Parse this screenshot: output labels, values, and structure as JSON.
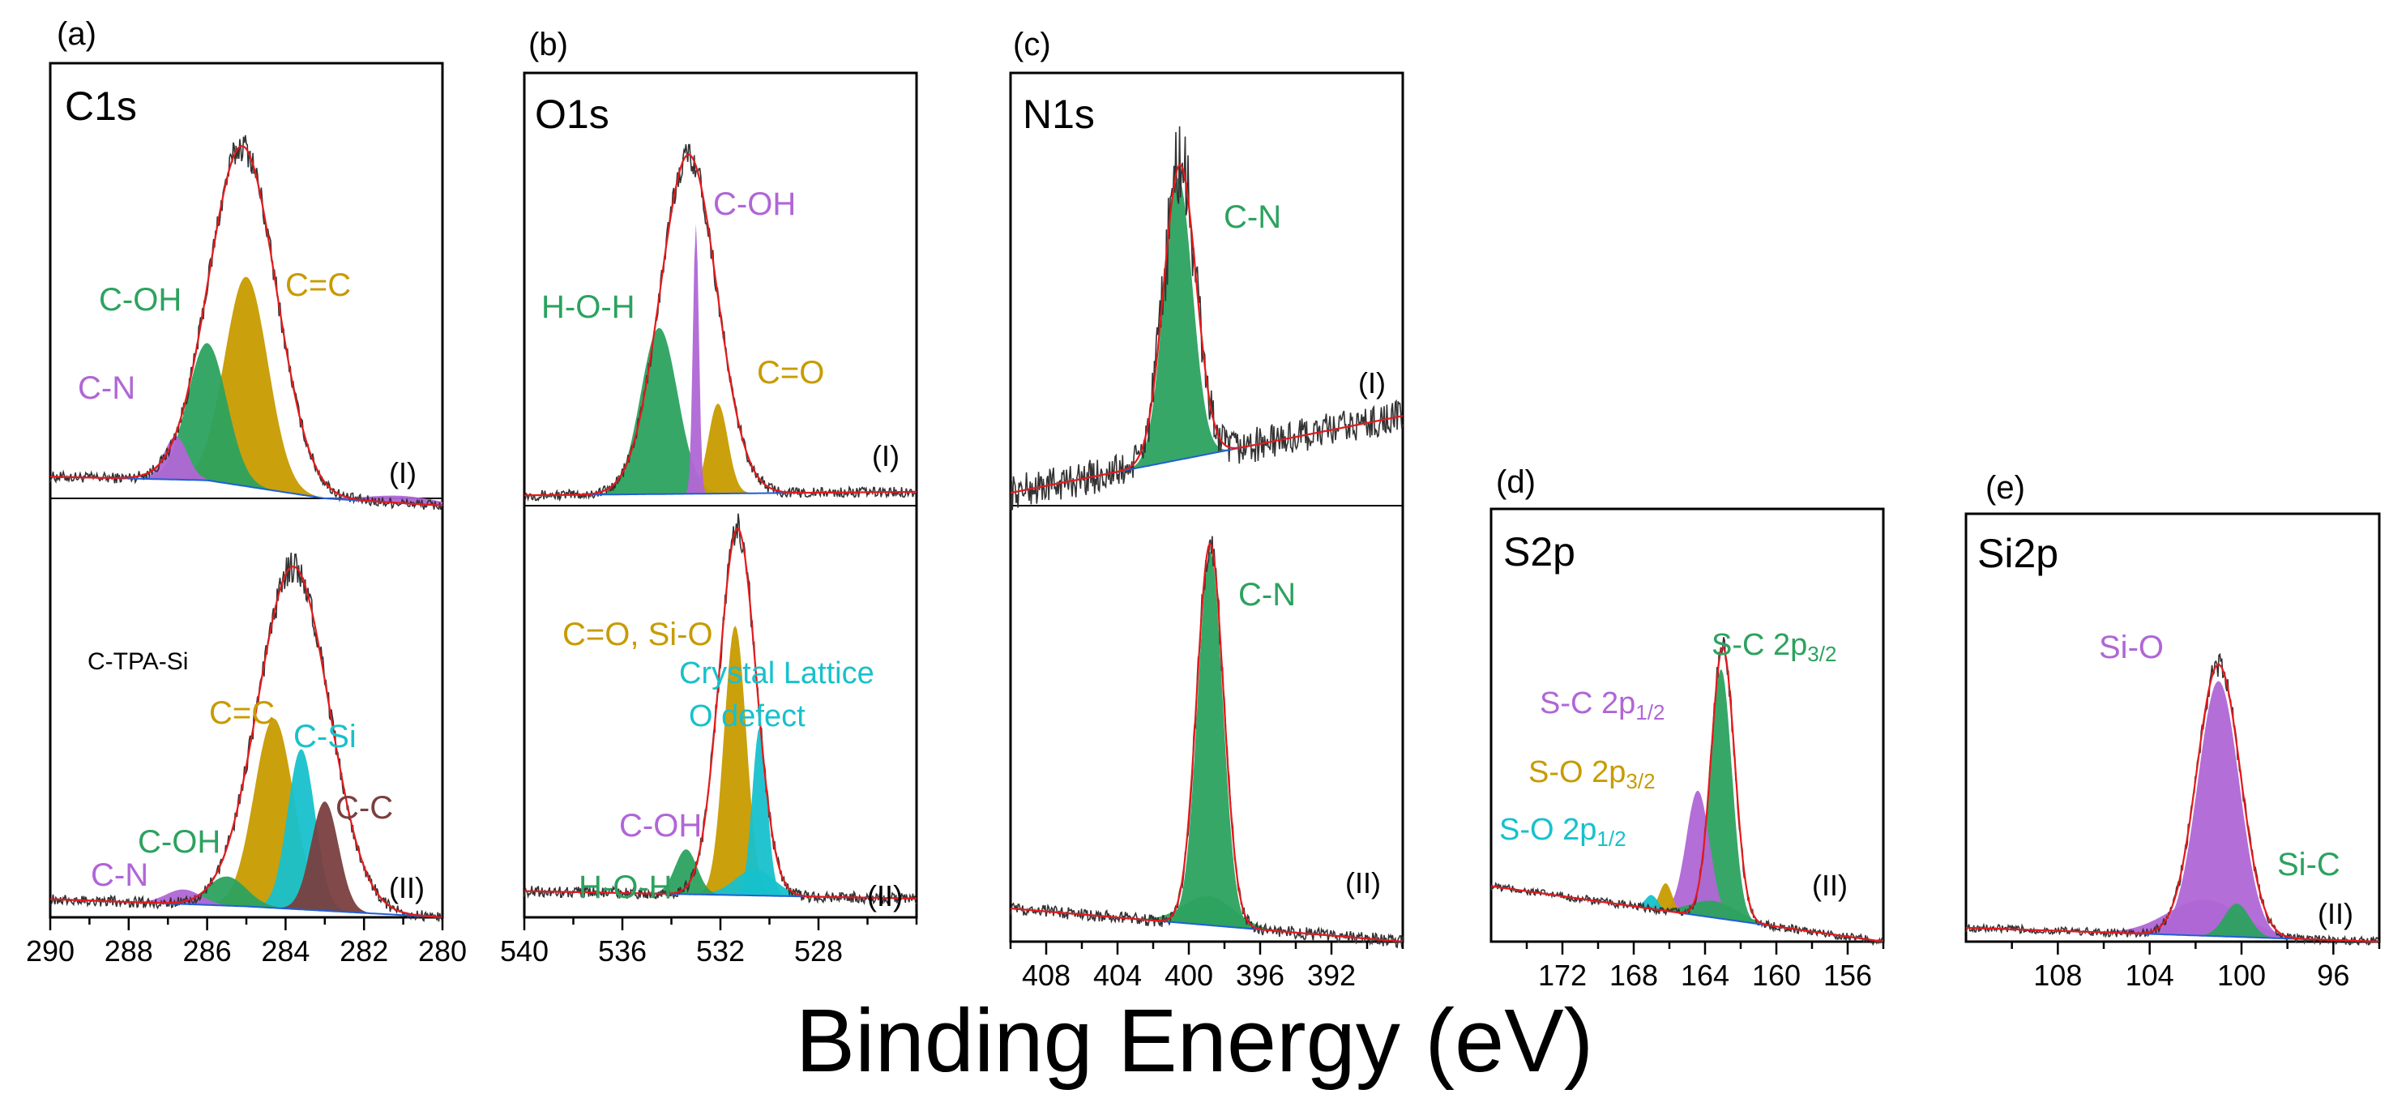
{
  "figure": {
    "xlabel": "Binding Energy (eV)"
  },
  "colors": {
    "black": "#333333",
    "red": "#e41a1c",
    "blue": "#1f5fd6",
    "green": "#2ca25f",
    "gold": "#c89b00",
    "violet": "#b066d6",
    "cyan": "#17c1cc",
    "brown": "#7a3f3f",
    "yellow": "#e6c300"
  },
  "chart_data": [
    {
      "panel": "(a)",
      "title": "C1s",
      "type": "line",
      "xlim": [
        290,
        280
      ],
      "xticks": [
        290,
        288,
        286,
        284,
        282,
        280
      ],
      "subplots": [
        {
          "label": "(I)",
          "ylim": [
            0,
            1.2
          ],
          "baseline": [
            [
              290,
              0.06
            ],
            [
              286,
              0.05
            ],
            [
              283,
              0.0
            ],
            [
              280,
              -0.02
            ]
          ],
          "envelope": {
            "center": 285.1,
            "sigma": 0.85,
            "height": 0.94
          },
          "peaks": [
            {
              "name": "C=C",
              "label": "C=C",
              "center": 285.0,
              "sigma": 0.55,
              "height": 0.58,
              "color": "gold"
            },
            {
              "name": "C-OH",
              "label": "C-OH",
              "center": 286.0,
              "sigma": 0.5,
              "height": 0.38,
              "color": "green"
            },
            {
              "name": "C-N",
              "label": "C-N",
              "center": 286.8,
              "sigma": 0.3,
              "height": 0.12,
              "color": "violet"
            },
            {
              "name": "tail",
              "center": 281.0,
              "sigma": 0.9,
              "height": 0.02,
              "color": "violet"
            }
          ]
        },
        {
          "label": "(II)",
          "ylim": [
            0,
            1.15
          ],
          "note": "C-TPA-Si",
          "baseline": [
            [
              290,
              0.05
            ],
            [
              285,
              0.03
            ],
            [
              280,
              0.0
            ]
          ],
          "envelope": {
            "center": 283.8,
            "sigma": 0.9,
            "height": 0.94
          },
          "peaks": [
            {
              "name": "C=C",
              "label": "C=C",
              "center": 284.3,
              "sigma": 0.5,
              "height": 0.52,
              "color": "gold"
            },
            {
              "name": "C-Si",
              "label": "C-Si",
              "center": 283.6,
              "sigma": 0.35,
              "height": 0.44,
              "color": "cyan"
            },
            {
              "name": "C-C",
              "label": "C-C",
              "center": 283.0,
              "sigma": 0.35,
              "height": 0.3,
              "color": "brown"
            },
            {
              "name": "C-OH",
              "label": "C-OH",
              "center": 285.5,
              "sigma": 0.5,
              "height": 0.08,
              "color": "green"
            },
            {
              "name": "C-N",
              "label": "C-N",
              "center": 286.6,
              "sigma": 0.45,
              "height": 0.04,
              "color": "violet"
            }
          ]
        }
      ]
    },
    {
      "panel": "(b)",
      "title": "O1s",
      "type": "line",
      "xlim": [
        540,
        524
      ],
      "xticks": [
        540,
        536,
        532,
        528
      ],
      "subplots": [
        {
          "label": "(I)",
          "ylim": [
            0,
            1.25
          ],
          "baseline": [
            [
              540,
              0.03
            ],
            [
              524,
              0.04
            ]
          ],
          "envelope": {
            "center": 533.3,
            "sigma": 1.15,
            "height": 0.98
          },
          "peaks": [
            {
              "name": "H-O-H",
              "label": "H-O-H",
              "center": 534.5,
              "sigma": 0.75,
              "height": 0.48,
              "color": "green"
            },
            {
              "name": "C=O",
              "label": "C=O",
              "center": 532.1,
              "sigma": 0.4,
              "height": 0.26,
              "color": "gold"
            },
            {
              "name": "C-OH",
              "label": "C-OH",
              "center": 533.0,
              "sigma": 0.12,
              "height": 0.78,
              "color": "violet"
            }
          ]
        },
        {
          "label": "(II)",
          "ylim": [
            0,
            1.1
          ],
          "baseline": [
            [
              540,
              0.07
            ],
            [
              524,
              0.05
            ]
          ],
          "envelope": {
            "center": 531.3,
            "sigma": 0.75,
            "height": 0.98
          },
          "peaks": [
            {
              "name": "C=O, Si-O",
              "label": "C=O, Si-O",
              "center": 531.4,
              "sigma": 0.45,
              "height": 0.72,
              "color": "gold"
            },
            {
              "name": "Crystal Lattice O defect",
              "label": "Crystal Lattice",
              "label2": "O defect",
              "center": 530.4,
              "sigma": 0.3,
              "height": 0.45,
              "color": "cyan"
            },
            {
              "name": "C-OH",
              "label": "C-OH",
              "center": 530.6,
              "sigma": 0.8,
              "height": 0.07,
              "color": "cyan"
            },
            {
              "name": "H-O-H",
              "label": "H-O-H",
              "center": 533.4,
              "sigma": 0.45,
              "height": 0.12,
              "color": "green"
            },
            {
              "name": "C-OH-label",
              "label": "C-OH",
              "center": 532.4,
              "sigma": 0.2,
              "height": 0.0,
              "color": "violet"
            }
          ]
        }
      ]
    },
    {
      "panel": "(c)",
      "title": "N1s",
      "type": "line",
      "xlim": [
        410,
        388
      ],
      "xticks": [
        408,
        404,
        400,
        396,
        392
      ],
      "subplots": [
        {
          "label": "(I)",
          "ylim": [
            0,
            1.35
          ],
          "baseline": [
            [
              410,
              0.04
            ],
            [
              388,
              0.28
            ]
          ],
          "envelope": {
            "center": 400.5,
            "sigma": 0.9,
            "height": 0.92
          },
          "peaks": [
            {
              "name": "C-N",
              "label": "C-N",
              "center": 400.6,
              "sigma": 0.8,
              "height": 0.88,
              "color": "green"
            }
          ]
        },
        {
          "label": "(II)",
          "ylim": [
            0,
            1.05
          ],
          "baseline": [
            [
              410,
              0.08
            ],
            [
              388,
              0.0
            ]
          ],
          "envelope": {
            "center": 398.8,
            "sigma": 0.75,
            "height": 0.92
          },
          "peaks": [
            {
              "name": "C-N",
              "label": "C-N",
              "center": 398.8,
              "sigma": 0.7,
              "height": 0.9,
              "color": "green"
            },
            {
              "name": "C-N broad",
              "center": 398.9,
              "sigma": 1.4,
              "height": 0.07,
              "color": "green"
            }
          ]
        }
      ]
    },
    {
      "panel": "(d)",
      "title": "S2p",
      "type": "line",
      "xlim": [
        176,
        154
      ],
      "xticks": [
        172,
        168,
        164,
        160,
        156
      ],
      "subplots": [
        {
          "label": "(II)",
          "ylim": [
            0,
            1.35
          ],
          "baseline": [
            [
              176,
              0.2
            ],
            [
              154,
              0.0
            ]
          ],
          "envelope": {
            "center": 163.0,
            "sigma": 0.65,
            "height": 0.98
          },
          "peaks": [
            {
              "name": "S-C 2p3/2",
              "label": "S-C 2p",
              "sub": "3/2",
              "center": 163.1,
              "sigma": 0.6,
              "height": 0.9,
              "color": "green"
            },
            {
              "name": "S-C 2p1/2",
              "label": "S-C 2p",
              "sub": "1/2",
              "center": 164.4,
              "sigma": 0.65,
              "height": 0.45,
              "color": "violet"
            },
            {
              "name": "S-O 2p3/2",
              "label": "S-O 2p",
              "sub": "3/2",
              "center": 166.2,
              "sigma": 0.35,
              "height": 0.1,
              "color": "gold"
            },
            {
              "name": "S-O 2p1/2",
              "label": "S-O 2p",
              "sub": "1/2",
              "center": 167.0,
              "sigma": 0.35,
              "height": 0.05,
              "color": "cyan"
            },
            {
              "name": "S broad",
              "center": 163.5,
              "sigma": 1.3,
              "height": 0.06,
              "color": "green"
            }
          ]
        }
      ]
    },
    {
      "panel": "(e)",
      "title": "Si2p",
      "type": "line",
      "xlim": [
        112,
        94
      ],
      "xticks": [
        108,
        104,
        100,
        96
      ],
      "subplots": [
        {
          "label": "(II)",
          "ylim": [
            0,
            1.35
          ],
          "baseline": [
            [
              112,
              0.05
            ],
            [
              94,
              0.0
            ]
          ],
          "envelope": {
            "center": 101.0,
            "sigma": 0.95,
            "height": 0.98
          },
          "peaks": [
            {
              "name": "Si-O",
              "label": "Si-O",
              "center": 101.0,
              "sigma": 0.9,
              "height": 0.92,
              "color": "violet"
            },
            {
              "name": "Si-O base",
              "center": 101.6,
              "sigma": 1.6,
              "height": 0.13,
              "color": "violet"
            },
            {
              "name": "Si-C",
              "label": "Si-C",
              "center": 100.2,
              "sigma": 0.55,
              "height": 0.12,
              "color": "green"
            }
          ]
        }
      ]
    }
  ]
}
